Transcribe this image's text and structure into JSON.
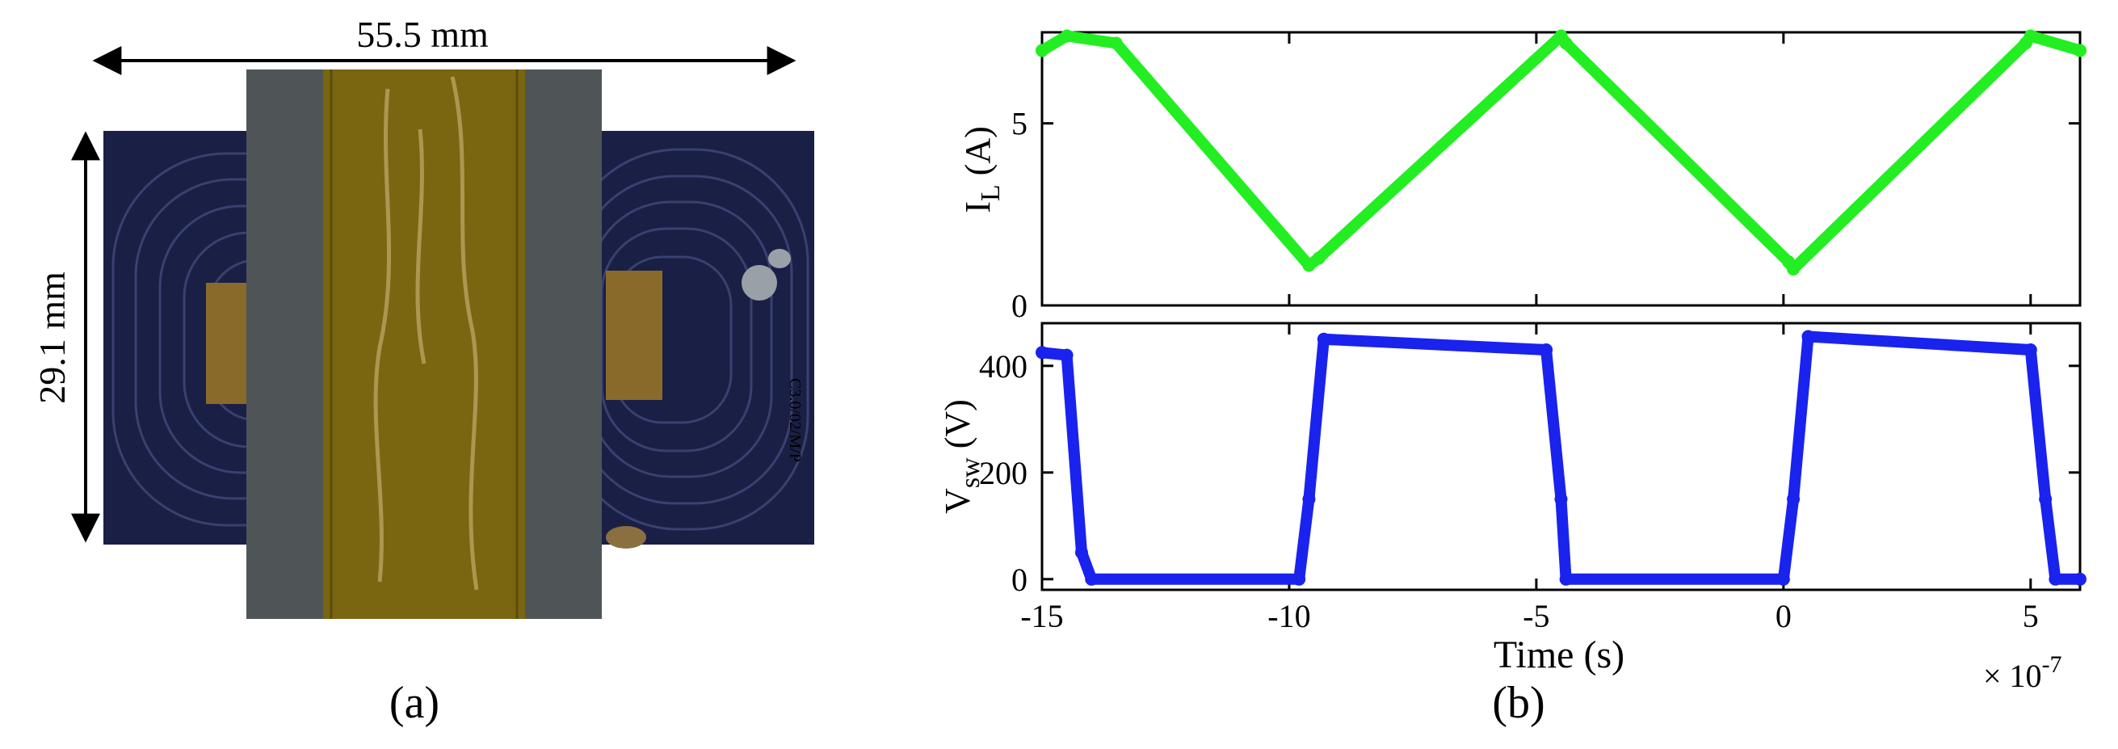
{
  "panel_a": {
    "caption": "(a)",
    "width_label": "55.5 mm",
    "height_label": "29.1 mm",
    "board_marking": "C3.0/02/M/P",
    "colors": {
      "board": "#1a1f45",
      "core": "#4f5556",
      "tape": "#7a6510"
    }
  },
  "panel_b": {
    "caption": "(b)"
  },
  "chart_data": [
    {
      "type": "line",
      "ylabel_main": "I",
      "ylabel_sub": "L",
      "ylabel_unit": " (A)",
      "xlim": [
        -1.5e-06,
        6e-07
      ],
      "ylim": [
        0,
        7.5
      ],
      "yticks": [
        0,
        5
      ],
      "color": "#22ee22",
      "series": [
        {
          "x": [
            -1.5e-06,
            -1.45e-06,
            -1.35e-06,
            -9.6e-07,
            -9.4e-07,
            -4.5e-07,
            -4.4e-07,
            1e-08,
            2e-08,
            4.9e-07,
            5e-07,
            6e-07
          ],
          "y": [
            7.0,
            7.4,
            7.2,
            1.1,
            1.3,
            7.4,
            7.2,
            1.2,
            1.0,
            7.2,
            7.4,
            7.0
          ]
        }
      ]
    },
    {
      "type": "line",
      "ylabel_main": "V",
      "ylabel_sub": "sw",
      "ylabel_unit": " (V)",
      "xlabel": "Time (s)",
      "xlim": [
        -1.5e-06,
        6e-07
      ],
      "ylim": [
        -20,
        480
      ],
      "yticks": [
        0,
        200,
        400
      ],
      "xticks": [
        -15,
        -10,
        -5,
        0,
        5
      ],
      "x_multiplier_base": "× 10",
      "x_multiplier_exp": "-7",
      "color": "#1a22ee",
      "series": [
        {
          "x": [
            -1.5e-06,
            -1.45e-06,
            -1.42e-06,
            -1.4e-06,
            -9.8e-07,
            -9.6e-07,
            -9.3e-07,
            -4.8e-07,
            -4.5e-07,
            -4.4e-07,
            0.0,
            2e-08,
            5e-08,
            5e-07,
            5.3e-07,
            5.5e-07,
            6e-07
          ],
          "y": [
            425,
            420,
            50,
            0,
            0,
            150,
            450,
            430,
            150,
            0,
            0,
            150,
            455,
            430,
            150,
            0,
            0
          ]
        }
      ]
    }
  ]
}
